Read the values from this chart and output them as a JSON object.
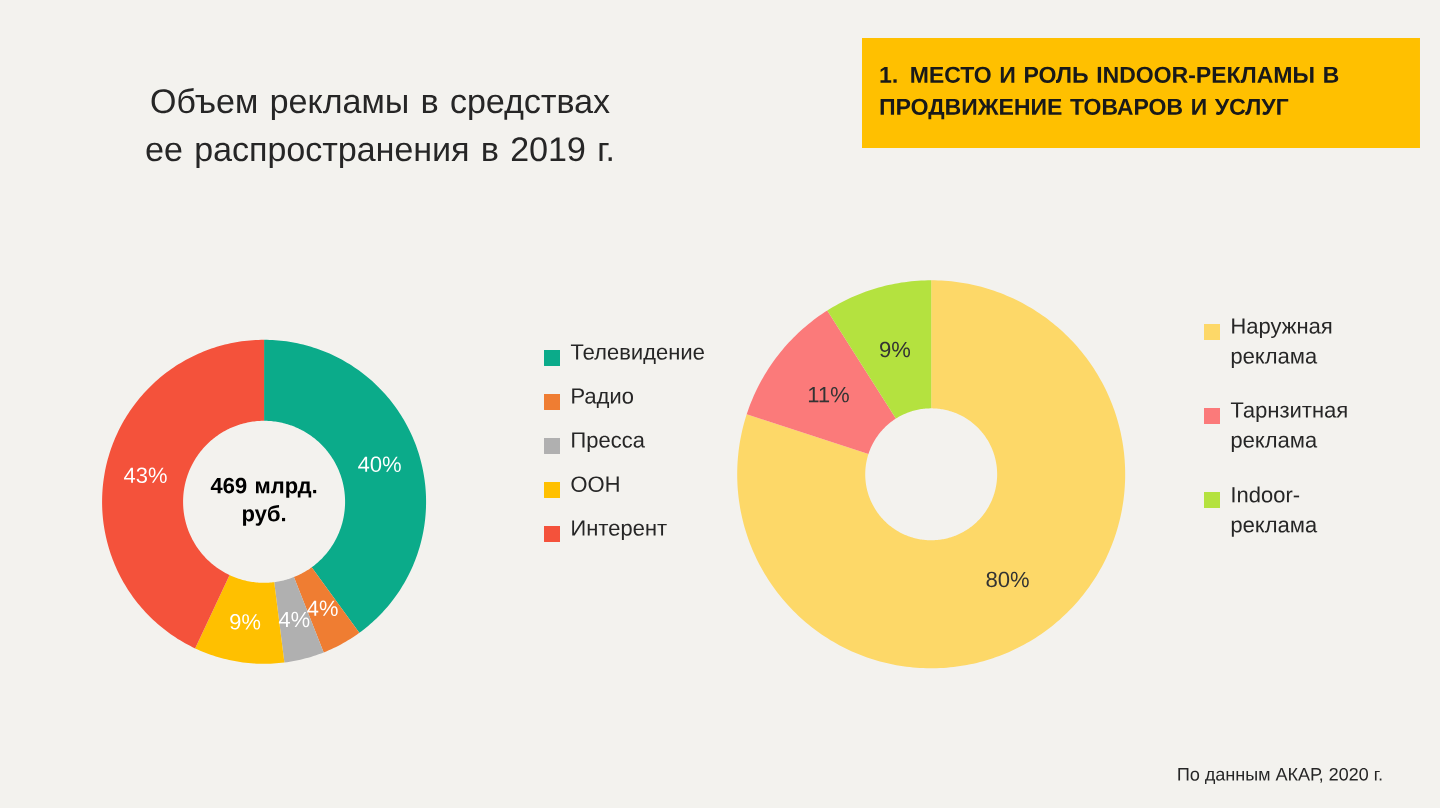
{
  "chart_data": [
    {
      "type": "donut",
      "title": "Объем рекламы в средствах ее распространения в 2019 г.",
      "categories": [
        "Телевидение",
        "Радио",
        "Пресса",
        "ООН",
        "Интерент"
      ],
      "values": [
        40,
        4,
        4,
        9,
        43
      ],
      "colors": [
        "#0bab8a",
        "#ef7d32",
        "#b0b0b0",
        "#ffc000",
        "#f4523b"
      ],
      "value_labels": [
        "40%",
        "4%",
        "4%",
        "9%",
        "43%"
      ],
      "legend": "right",
      "annotations": [
        "469 млрд. руб."
      ]
    },
    {
      "type": "donut",
      "title": "1. МЕСТО И РОЛЬ INDOOR-РЕКЛАМЫ В ПРОДВИЖЕНИЕ ТОВАРОВ И УСЛУГ",
      "categories": [
        "Наружная реклама",
        "Тарнзитная реклама",
        "Indoor-реклама"
      ],
      "values": [
        80,
        11,
        9
      ],
      "colors": [
        "#fdd868",
        "#fb7a7a",
        "#b4e23f"
      ],
      "value_labels": [
        "80%",
        "11%",
        "9%"
      ],
      "legend": "right",
      "annotations": [
        "По данным  АКАР, 2020 г."
      ]
    }
  ]
}
